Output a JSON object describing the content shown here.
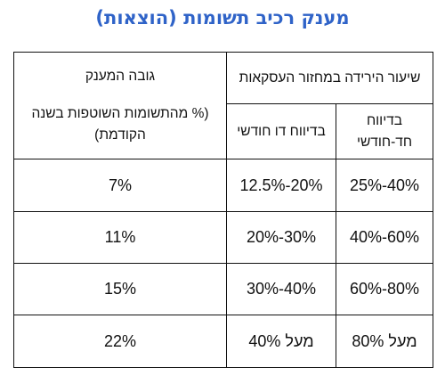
{
  "title": "מענק רכיב תשומות (הוצאות)",
  "table": {
    "header_decline": "שיעור הירידה במחזור העסקאות",
    "header_bimonthly": "בדיווח חד-חודשי",
    "header_monthly": "בדיווח דו חודשי",
    "header_grant_height": "גובה המענק",
    "header_grant_note": "(% מהתשומות השוטפות בשנה הקודמת)",
    "rows": [
      {
        "bimonthly": "25%-40%",
        "monthly": "12.5%-20%",
        "grant": "7%"
      },
      {
        "bimonthly": "40%-60%",
        "monthly": "20%-30%",
        "grant": "11%"
      },
      {
        "bimonthly": "60%-80%",
        "monthly": "30%-40%",
        "grant": "15%"
      },
      {
        "bimonthly": "מעל 80%",
        "monthly": "מעל 40%",
        "grant": "22%"
      }
    ]
  }
}
